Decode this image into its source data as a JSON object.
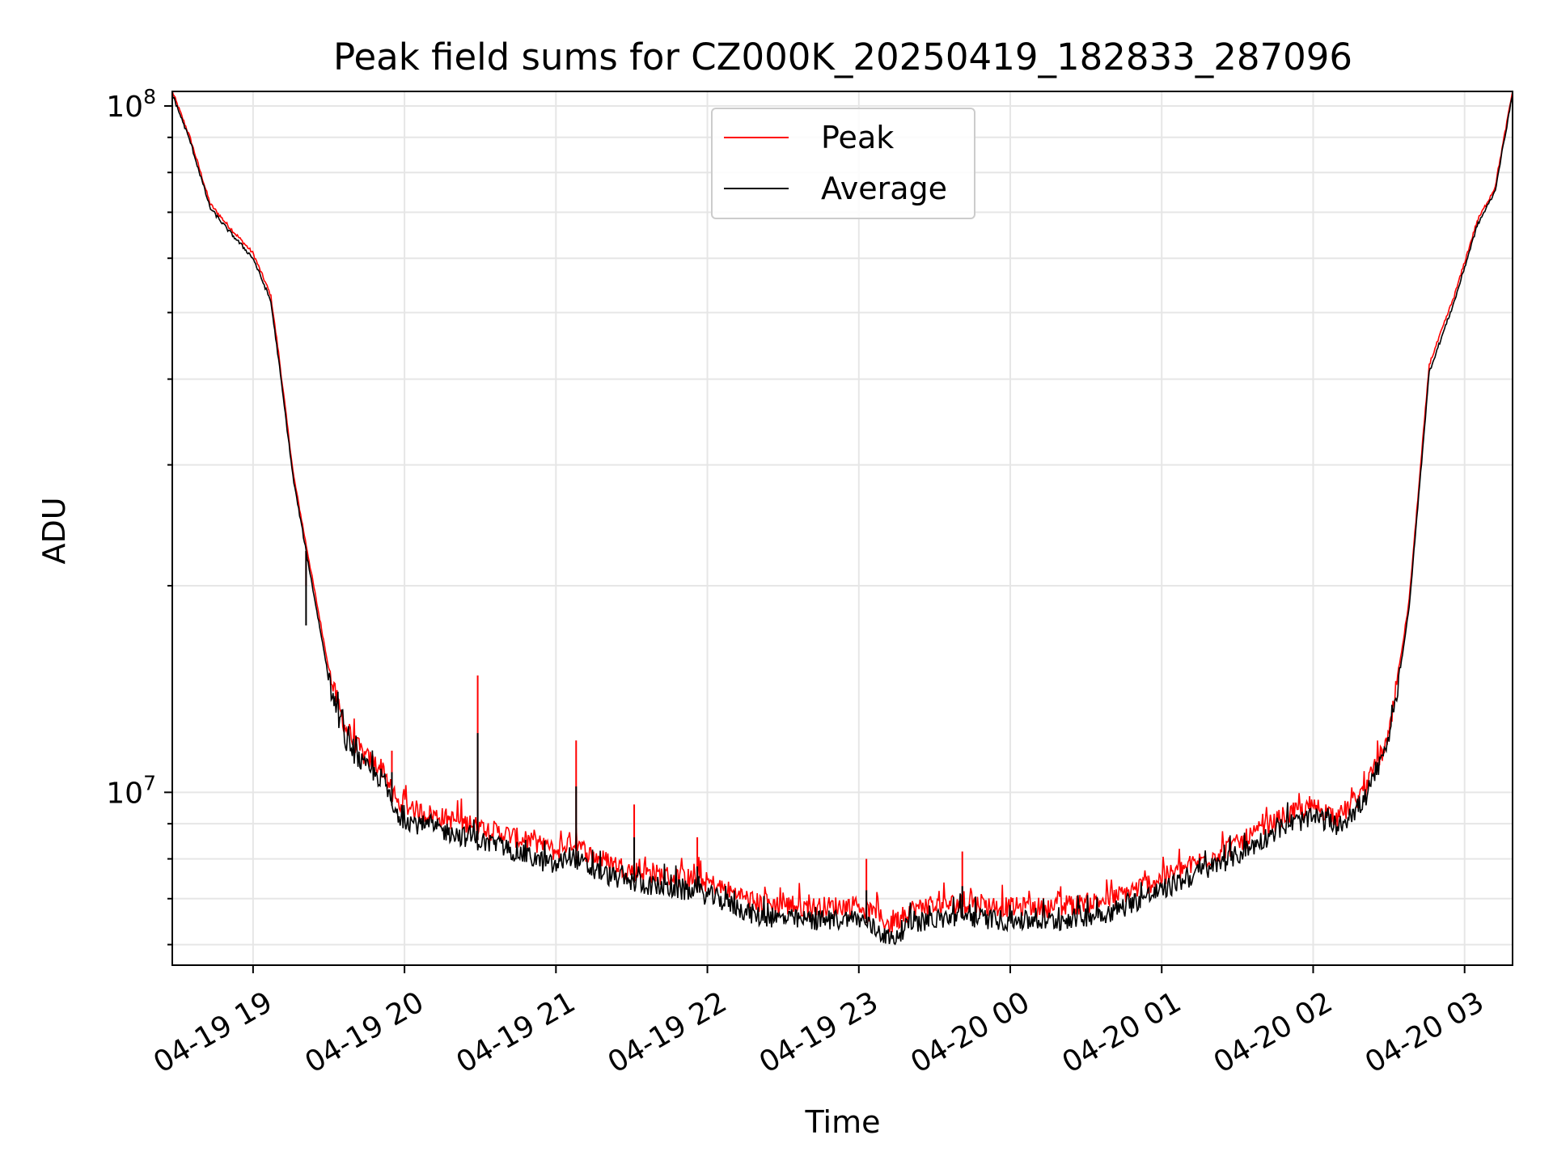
{
  "chart_data": {
    "type": "line",
    "title": "Peak field sums for CZ000K_20250419_182833_287096",
    "xlabel": "Time",
    "ylabel": "ADU",
    "y_scale": "log",
    "ylim": [
      5600000,
      105000000
    ],
    "xlim": [
      "2025-04-19 18:28",
      "2025-04-20 03:19"
    ],
    "x_ticks": [
      "2025-04-19 19:00",
      "2025-04-19 20:00",
      "2025-04-19 21:00",
      "2025-04-19 22:00",
      "2025-04-19 23:00",
      "2025-04-20 00:00",
      "2025-04-20 01:00",
      "2025-04-20 02:00",
      "2025-04-20 03:00"
    ],
    "x_tick_labels": [
      "04-19 19",
      "04-19 20",
      "04-19 21",
      "04-19 22",
      "04-19 23",
      "04-20 00",
      "04-20 01",
      "04-20 02",
      "04-20 03"
    ],
    "y_major_ticks": [
      10000000,
      100000000
    ],
    "y_tick_labels": [
      {
        "base": "10",
        "exp": "7"
      },
      {
        "base": "10",
        "exp": "8"
      }
    ],
    "grid": true,
    "legend": "upper-center",
    "series": [
      {
        "name": "Peak",
        "color": "#ff0000",
        "x": [
          "2025-04-19 18:28",
          "2025-04-19 18:35",
          "2025-04-19 18:43",
          "2025-04-19 18:50",
          "2025-04-19 19:00",
          "2025-04-19 19:07",
          "2025-04-19 19:10",
          "2025-04-19 19:16",
          "2025-04-19 19:24",
          "2025-04-19 19:31",
          "2025-04-19 19:37",
          "2025-04-19 19:44",
          "2025-04-19 19:52",
          "2025-04-19 19:56",
          "2025-04-19 20:05",
          "2025-04-19 20:20",
          "2025-04-19 20:30",
          "2025-04-19 20:40",
          "2025-04-19 21:00",
          "2025-04-19 21:06",
          "2025-04-19 21:14",
          "2025-04-19 21:30",
          "2025-04-19 22:00",
          "2025-04-19 22:20",
          "2025-04-19 22:40",
          "2025-04-19 23:00",
          "2025-04-19 23:13",
          "2025-04-19 23:20",
          "2025-04-19 23:40",
          "2025-04-20 00:00",
          "2025-04-20 00:20",
          "2025-04-20 00:40",
          "2025-04-20 01:00",
          "2025-04-20 01:30",
          "2025-04-20 01:50",
          "2025-04-20 02:02",
          "2025-04-20 02:10",
          "2025-04-20 02:20",
          "2025-04-20 02:30",
          "2025-04-20 02:38",
          "2025-04-20 02:46",
          "2025-04-20 02:56",
          "2025-04-20 03:05",
          "2025-04-20 03:12",
          "2025-04-20 03:19"
        ],
        "values": [
          105000000,
          90000000,
          72000000,
          67000000,
          61000000,
          53000000,
          44000000,
          29000000,
          20000000,
          14500000,
          12300000,
          11300000,
          10800000,
          9700000,
          9400000,
          9100000,
          8900000,
          8700000,
          8200000,
          8500000,
          8100000,
          7700000,
          7400000,
          6900000,
          6800000,
          6850000,
          6400000,
          6750000,
          6900000,
          6800000,
          6800000,
          7000000,
          7500000,
          8400000,
          9300000,
          9500000,
          9200000,
          10000000,
          12000000,
          19000000,
          42000000,
          53000000,
          68000000,
          76000000,
          105000000
        ]
      },
      {
        "name": "Average",
        "color": "#000000",
        "x": [
          "2025-04-19 18:28",
          "2025-04-19 18:35",
          "2025-04-19 18:43",
          "2025-04-19 18:50",
          "2025-04-19 19:00",
          "2025-04-19 19:07",
          "2025-04-19 19:10",
          "2025-04-19 19:16",
          "2025-04-19 19:24",
          "2025-04-19 19:31",
          "2025-04-19 19:37",
          "2025-04-19 19:44",
          "2025-04-19 19:52",
          "2025-04-19 19:56",
          "2025-04-19 20:05",
          "2025-04-19 20:20",
          "2025-04-19 20:30",
          "2025-04-19 20:40",
          "2025-04-19 21:00",
          "2025-04-19 21:06",
          "2025-04-19 21:14",
          "2025-04-19 21:30",
          "2025-04-19 22:00",
          "2025-04-19 22:20",
          "2025-04-19 22:40",
          "2025-04-19 23:00",
          "2025-04-19 23:13",
          "2025-04-19 23:20",
          "2025-04-19 23:40",
          "2025-04-20 00:00",
          "2025-04-20 00:20",
          "2025-04-20 00:40",
          "2025-04-20 01:00",
          "2025-04-20 01:30",
          "2025-04-20 01:50",
          "2025-04-20 02:02",
          "2025-04-20 02:10",
          "2025-04-20 02:20",
          "2025-04-20 02:30",
          "2025-04-20 02:38",
          "2025-04-20 02:46",
          "2025-04-20 02:56",
          "2025-04-20 03:05",
          "2025-04-20 03:12",
          "2025-04-20 03:19"
        ],
        "values": [
          104000000,
          89000000,
          71000000,
          66000000,
          60000000,
          52000000,
          43000000,
          28500000,
          19500000,
          14000000,
          11800000,
          10900000,
          10400000,
          9300000,
          9000000,
          8700000,
          8500000,
          8300000,
          7800000,
          8100000,
          7700000,
          7400000,
          7100000,
          6600000,
          6500000,
          6550000,
          6100000,
          6450000,
          6600000,
          6500000,
          6500000,
          6700000,
          7200000,
          8100000,
          9000000,
          9200000,
          8900000,
          9700000,
          11700000,
          18500000,
          41000000,
          52000000,
          67000000,
          75000000,
          104000000
        ]
      }
    ],
    "spikes": [
      {
        "x": "2025-04-19 19:21",
        "peak": 20000000,
        "average": 17500000
      },
      {
        "x": "2025-04-19 19:55",
        "peak": 11500000,
        "average": 10700000
      },
      {
        "x": "2025-04-19 20:29",
        "peak": 14800000,
        "average": 12200000
      },
      {
        "x": "2025-04-19 21:08",
        "peak": 11900000,
        "average": 10200000
      },
      {
        "x": "2025-04-19 21:31",
        "peak": 9600000,
        "average": 8600000
      },
      {
        "x": "2025-04-19 21:56",
        "peak": 8600000,
        "average": 7800000
      },
      {
        "x": "2025-04-19 23:03",
        "peak": 8000000,
        "average": 7200000
      },
      {
        "x": "2025-04-19 23:41",
        "peak": 8200000,
        "average": 7300000
      }
    ]
  }
}
